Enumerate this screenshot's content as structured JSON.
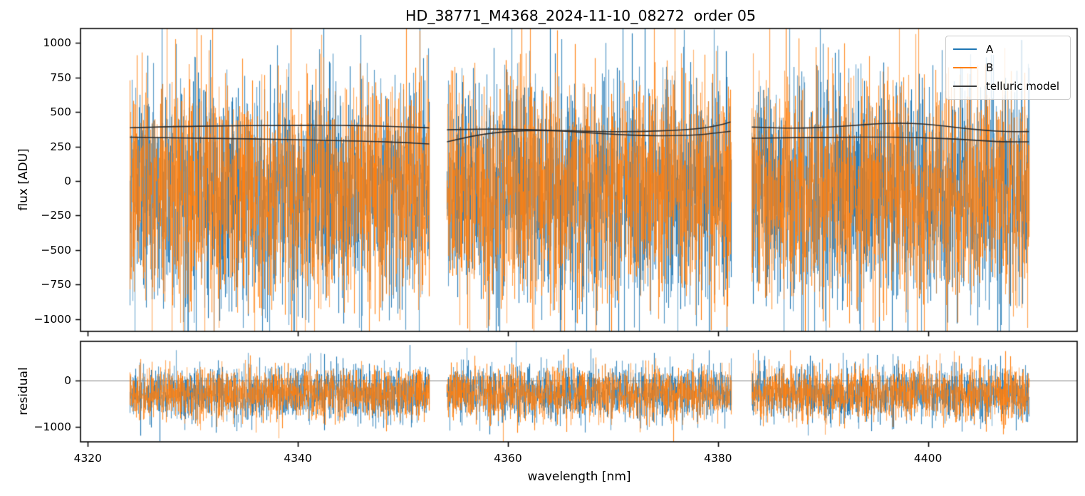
{
  "chart_data": {
    "type": "line",
    "title": "HD_38771_M4368_2024-11-10_08272  order 05",
    "xlabel": "wavelength [nm]",
    "x_axis": {
      "lim": [
        4319.3,
        4414.2
      ],
      "ticks": [
        {
          "value": 4320,
          "label": "4320"
        },
        {
          "value": 4340,
          "label": "4340"
        },
        {
          "value": 4360,
          "label": "4360"
        },
        {
          "value": 4380,
          "label": "4380"
        },
        {
          "value": 4400,
          "label": "4400"
        }
      ]
    },
    "segments_nm": [
      [
        4324.0,
        4352.5
      ],
      [
        4354.2,
        4381.2
      ],
      [
        4383.2,
        4409.6
      ]
    ],
    "gaps_nm": [
      [
        4352.5,
        4354.2
      ],
      [
        4381.2,
        4383.2
      ]
    ],
    "panels": [
      {
        "name": "flux",
        "ylabel": "flux [ADU]",
        "ylim": [
          -1090,
          1105
        ],
        "yticks": [
          {
            "value": 1000,
            "label": "1000"
          },
          {
            "value": 750,
            "label": "750"
          },
          {
            "value": 500,
            "label": "500"
          },
          {
            "value": 250,
            "label": "250"
          },
          {
            "value": 0,
            "label": "0"
          },
          {
            "value": -250,
            "label": "−250"
          },
          {
            "value": -500,
            "label": "−500"
          },
          {
            "value": -750,
            "label": "−750"
          },
          {
            "value": -1000,
            "label": "−1000"
          }
        ],
        "noise_series": [
          {
            "name": "A",
            "color": "#1f77b4",
            "mean_adu": -75,
            "sigma_adu": 415,
            "samples_per_column": 4,
            "seed": 101
          },
          {
            "name": "B",
            "color": "#ff7f0e",
            "mean_adu": -75,
            "sigma_adu": 408,
            "samples_per_column": 4,
            "seed": 202
          }
        ],
        "telluric_model": {
          "name": "telluric model",
          "color": "#2e2e2e",
          "lines": [
            {
              "segments": [
                [
                  [
                    4324.0,
                    386
                  ],
                  [
                    4328,
                    394
                  ],
                  [
                    4333,
                    400
                  ],
                  [
                    4338,
                    403
                  ],
                  [
                    4343,
                    404
                  ],
                  [
                    4347,
                    400
                  ],
                  [
                    4350,
                    393
                  ],
                  [
                    4352.5,
                    385
                  ]
                ],
                [
                  [
                    4354.2,
                    371
                  ],
                  [
                    4357,
                    376
                  ],
                  [
                    4360,
                    376
                  ],
                  [
                    4363.5,
                    369
                  ],
                  [
                    4367,
                    361
                  ],
                  [
                    4370,
                    357
                  ],
                  [
                    4373,
                    359
                  ],
                  [
                    4376,
                    367
                  ],
                  [
                    4378.5,
                    381
                  ],
                  [
                    4380.4,
                    409
                  ],
                  [
                    4381.2,
                    428
                  ]
                ],
                [
                  [
                    4383.2,
                    391
                  ],
                  [
                    4385.5,
                    384
                  ],
                  [
                    4388,
                    383
                  ],
                  [
                    4390.5,
                    390
                  ],
                  [
                    4393,
                    403
                  ],
                  [
                    4395.5,
                    416
                  ],
                  [
                    4397.5,
                    420
                  ],
                  [
                    4399.5,
                    414
                  ],
                  [
                    4401.5,
                    399
                  ],
                  [
                    4403.5,
                    381
                  ],
                  [
                    4405.5,
                    366
                  ],
                  [
                    4407.5,
                    357
                  ],
                  [
                    4409.6,
                    358
                  ]
                ]
              ]
            },
            {
              "segments": [
                [
                  [
                    4324.0,
                    317
                  ],
                  [
                    4328,
                    313
                  ],
                  [
                    4333,
                    308
                  ],
                  [
                    4338,
                    302
                  ],
                  [
                    4343,
                    294
                  ],
                  [
                    4347,
                    287
                  ],
                  [
                    4350,
                    279
                  ],
                  [
                    4352.5,
                    268
                  ]
                ],
                [
                  [
                    4354.2,
                    284
                  ],
                  [
                    4356,
                    315
                  ],
                  [
                    4358,
                    344
                  ],
                  [
                    4360.5,
                    362
                  ],
                  [
                    4363,
                    367
                  ],
                  [
                    4365.5,
                    360
                  ],
                  [
                    4368,
                    348
                  ],
                  [
                    4370.5,
                    336
                  ],
                  [
                    4373,
                    328
                  ],
                  [
                    4375.5,
                    327
                  ],
                  [
                    4378,
                    333
                  ],
                  [
                    4380,
                    349
                  ],
                  [
                    4381.2,
                    360
                  ]
                ],
                [
                  [
                    4383.2,
                    310
                  ],
                  [
                    4386,
                    313
                  ],
                  [
                    4389,
                    315
                  ],
                  [
                    4392,
                    316
                  ],
                  [
                    4395,
                    318
                  ],
                  [
                    4398,
                    317
                  ],
                  [
                    4400.5,
                    311
                  ],
                  [
                    4403,
                    302
                  ],
                  [
                    4405,
                    293
                  ],
                  [
                    4407,
                    284
                  ],
                  [
                    4409.6,
                    284
                  ]
                ]
              ]
            }
          ]
        }
      },
      {
        "name": "residual",
        "ylabel": "residual",
        "ylim": [
          -1330,
          840
        ],
        "yticks": [
          {
            "value": 0,
            "label": "0"
          },
          {
            "value": -1000,
            "label": "−1000"
          }
        ],
        "zero_line": {
          "value": 0,
          "color": "#808080"
        },
        "noise_series": [
          {
            "name": "A",
            "color": "#1f77b4",
            "mean_adu": -285,
            "sigma_adu": 290,
            "samples_per_column": 4,
            "seed": 303
          },
          {
            "name": "B",
            "color": "#ff7f0e",
            "mean_adu": -285,
            "sigma_adu": 285,
            "samples_per_column": 4,
            "seed": 404
          }
        ]
      }
    ],
    "legend": {
      "position": "upper right",
      "entries": [
        {
          "label": "A",
          "color": "#1f77b4"
        },
        {
          "label": "B",
          "color": "#ff7f0e"
        },
        {
          "label": "telluric model",
          "color": "#3c3c3c"
        }
      ]
    }
  }
}
